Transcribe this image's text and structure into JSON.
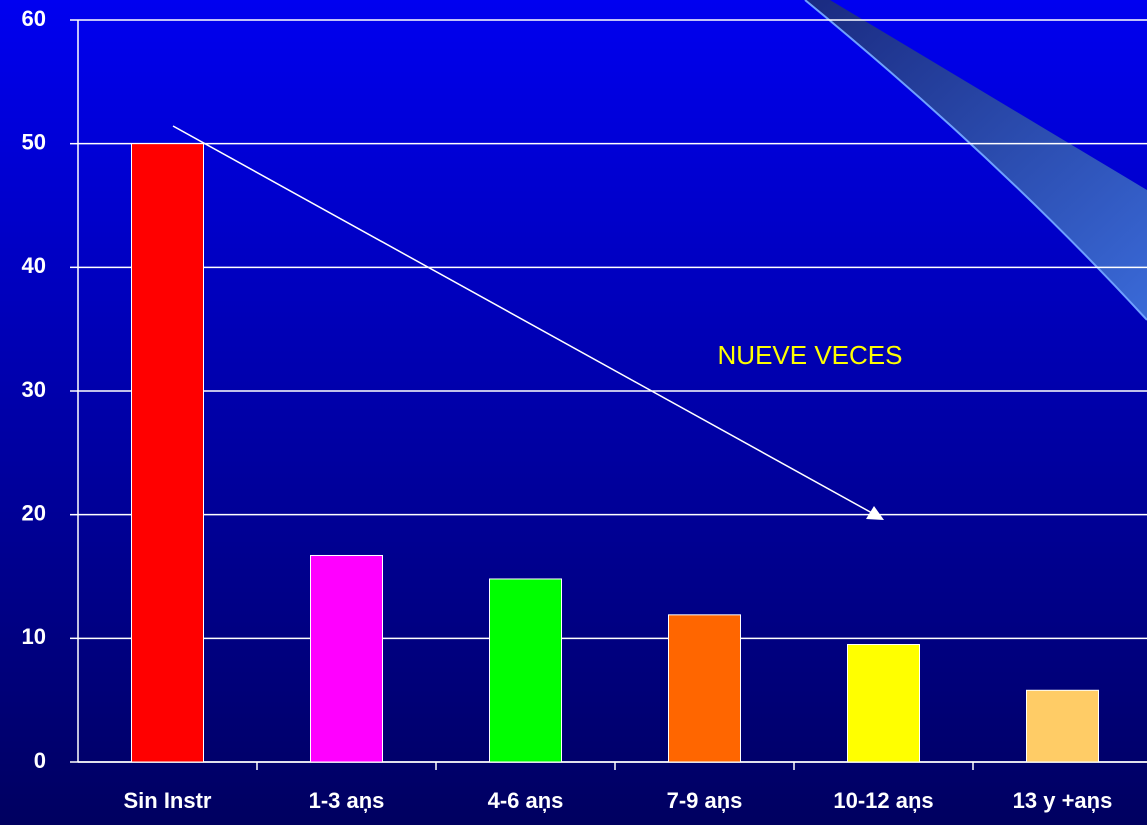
{
  "chart_data": {
    "type": "bar",
    "categories": [
      "Sin Instr",
      "1-3 aņs",
      "4-6 aņs",
      "7-9 aņs",
      "10-12 aņs",
      "13 y +aņs"
    ],
    "values": [
      50,
      16.7,
      14.8,
      11.9,
      9.5,
      5.8
    ],
    "colors": [
      "#ff0000",
      "#ff00ff",
      "#00ff00",
      "#ff6600",
      "#ffff00",
      "#ffcc66"
    ],
    "ylim": [
      0,
      60
    ],
    "yticks": [
      0,
      10,
      20,
      30,
      40,
      50,
      60
    ],
    "grid": true,
    "annotation": "NUEVE VECES"
  }
}
